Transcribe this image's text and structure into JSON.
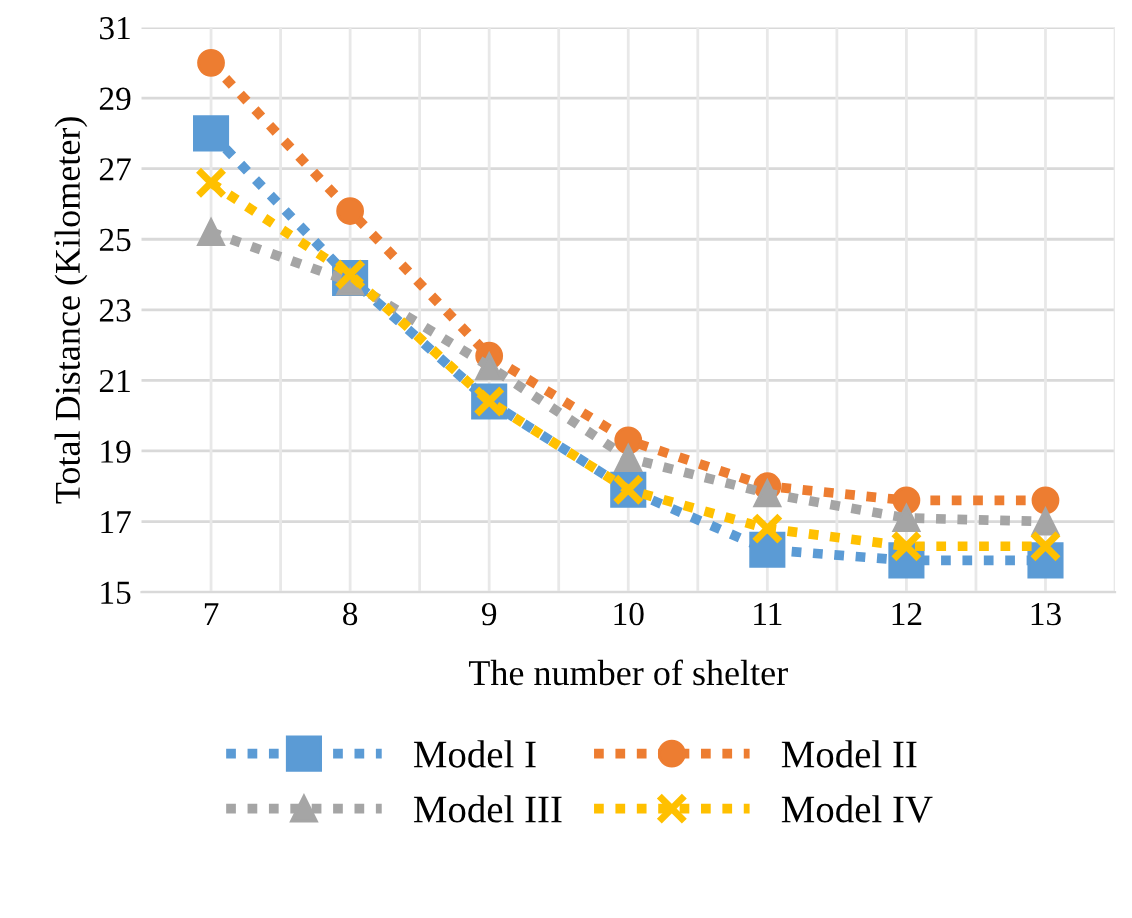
{
  "chart_data": {
    "type": "line",
    "xlabel": "The number of shelter",
    "ylabel": "Total Distance (Kilometer)",
    "categories": [
      "7",
      "8",
      "9",
      "10",
      "11",
      "12",
      "13"
    ],
    "series": [
      {
        "name": "Model I",
        "color": "#5b9bd5",
        "marker": "square",
        "values": [
          28.0,
          23.9,
          20.4,
          17.9,
          16.2,
          15.9,
          15.9
        ]
      },
      {
        "name": "Model II",
        "color": "#ed7d31",
        "marker": "circle",
        "values": [
          30.0,
          25.8,
          21.7,
          19.3,
          18.0,
          17.6,
          17.6
        ]
      },
      {
        "name": "Model III",
        "color": "#a5a5a5",
        "marker": "triangle",
        "values": [
          25.2,
          23.8,
          21.4,
          18.8,
          17.8,
          17.1,
          17.0
        ]
      },
      {
        "name": "Model IV",
        "color": "#ffc000",
        "marker": "cross",
        "values": [
          26.6,
          24.0,
          20.4,
          17.9,
          16.8,
          16.3,
          16.3
        ]
      }
    ],
    "ylim": [
      15,
      31
    ],
    "yticks": [
      15,
      17,
      19,
      21,
      23,
      25,
      27,
      29,
      31
    ],
    "grid": true,
    "legend": "bottom",
    "line_style": "dotted"
  }
}
